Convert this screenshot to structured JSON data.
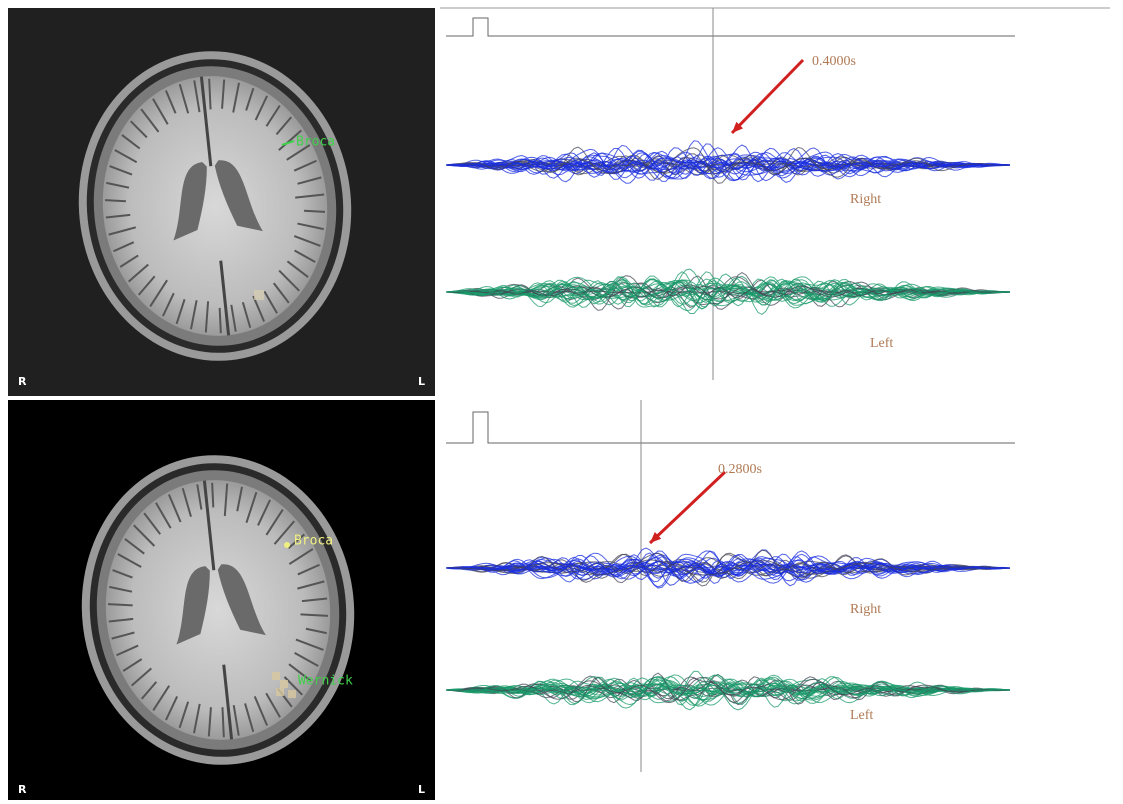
{
  "panels": [
    {
      "brain": {
        "labels": [
          "Broca"
        ],
        "orientation": {
          "right": "R",
          "left": "L"
        }
      },
      "time_label": "0.4000s",
      "traces": [
        "Right",
        "Left"
      ]
    },
    {
      "brain": {
        "labels": [
          "Broca",
          "Wernick"
        ],
        "orientation": {
          "right": "R",
          "left": "L"
        }
      },
      "time_label": "0.2800s",
      "traces": [
        "Right",
        "Left"
      ]
    }
  ]
}
